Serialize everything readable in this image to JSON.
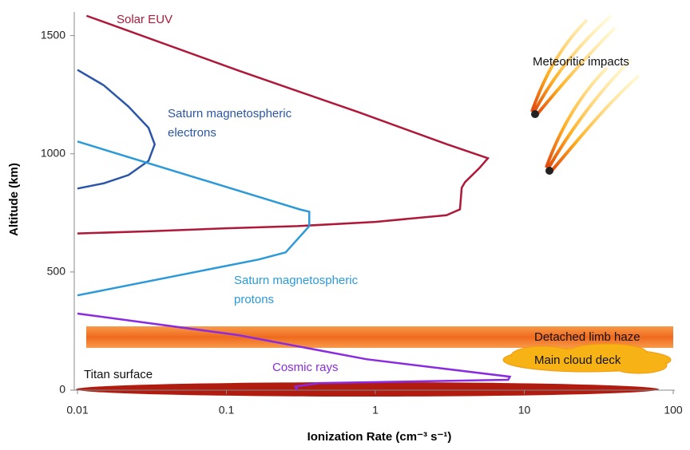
{
  "chart_data": {
    "type": "line",
    "xscale": "log",
    "xlabel": "Ionization Rate (cm⁻³ s⁻¹)",
    "ylabel": "Altitude (km)",
    "xlim": [
      0.01,
      100
    ],
    "ylim": [
      0,
      1600
    ],
    "xticks": [
      0.01,
      0.1,
      1,
      10,
      100
    ],
    "yticks": [
      0,
      500,
      1000,
      1500
    ],
    "series": [
      {
        "label": [
          "Solar EUV"
        ],
        "color": "#b0183a",
        "x": [
          0.0115,
          0.122,
          0.77,
          3.0,
          5.7,
          5.0,
          4.0,
          3.8,
          3.7,
          3.0,
          1.0,
          0.3,
          0.1,
          0.03,
          0.01
        ],
        "values": [
          1584,
          1351,
          1176,
          1041,
          981,
          940,
          880,
          856,
          765,
          740,
          712,
          694,
          685,
          672,
          663
        ]
      },
      {
        "label": [
          "Saturn magnetospheric",
          "electrons"
        ],
        "color": "#2a56a8",
        "x": [
          0.01,
          0.015,
          0.022,
          0.03,
          0.033,
          0.03,
          0.022,
          0.015,
          0.01
        ],
        "values": [
          1355,
          1290,
          1200,
          1110,
          1040,
          970,
          910,
          875,
          853
        ]
      },
      {
        "label": [
          "Saturn magnetospheric",
          "protons"
        ],
        "color": "#2c9ad8",
        "x": [
          0.01,
          0.31,
          0.36,
          0.36,
          0.25,
          0.165,
          0.01
        ],
        "values": [
          1052,
          765,
          755,
          694,
          583,
          553,
          401
        ]
      },
      {
        "label": [
          "Cosmic rays"
        ],
        "color": "#8a2be2",
        "x": [
          0.01,
          0.12,
          0.87,
          8.0,
          7.8,
          0.42,
          0.29,
          0.3
        ],
        "values": [
          324,
          233,
          131,
          57,
          44,
          30,
          15,
          0
        ]
      }
    ],
    "annotations": [
      "Meteoritic impacts",
      "Detached limb haze",
      "Main cloud deck",
      "Titan surface"
    ]
  }
}
